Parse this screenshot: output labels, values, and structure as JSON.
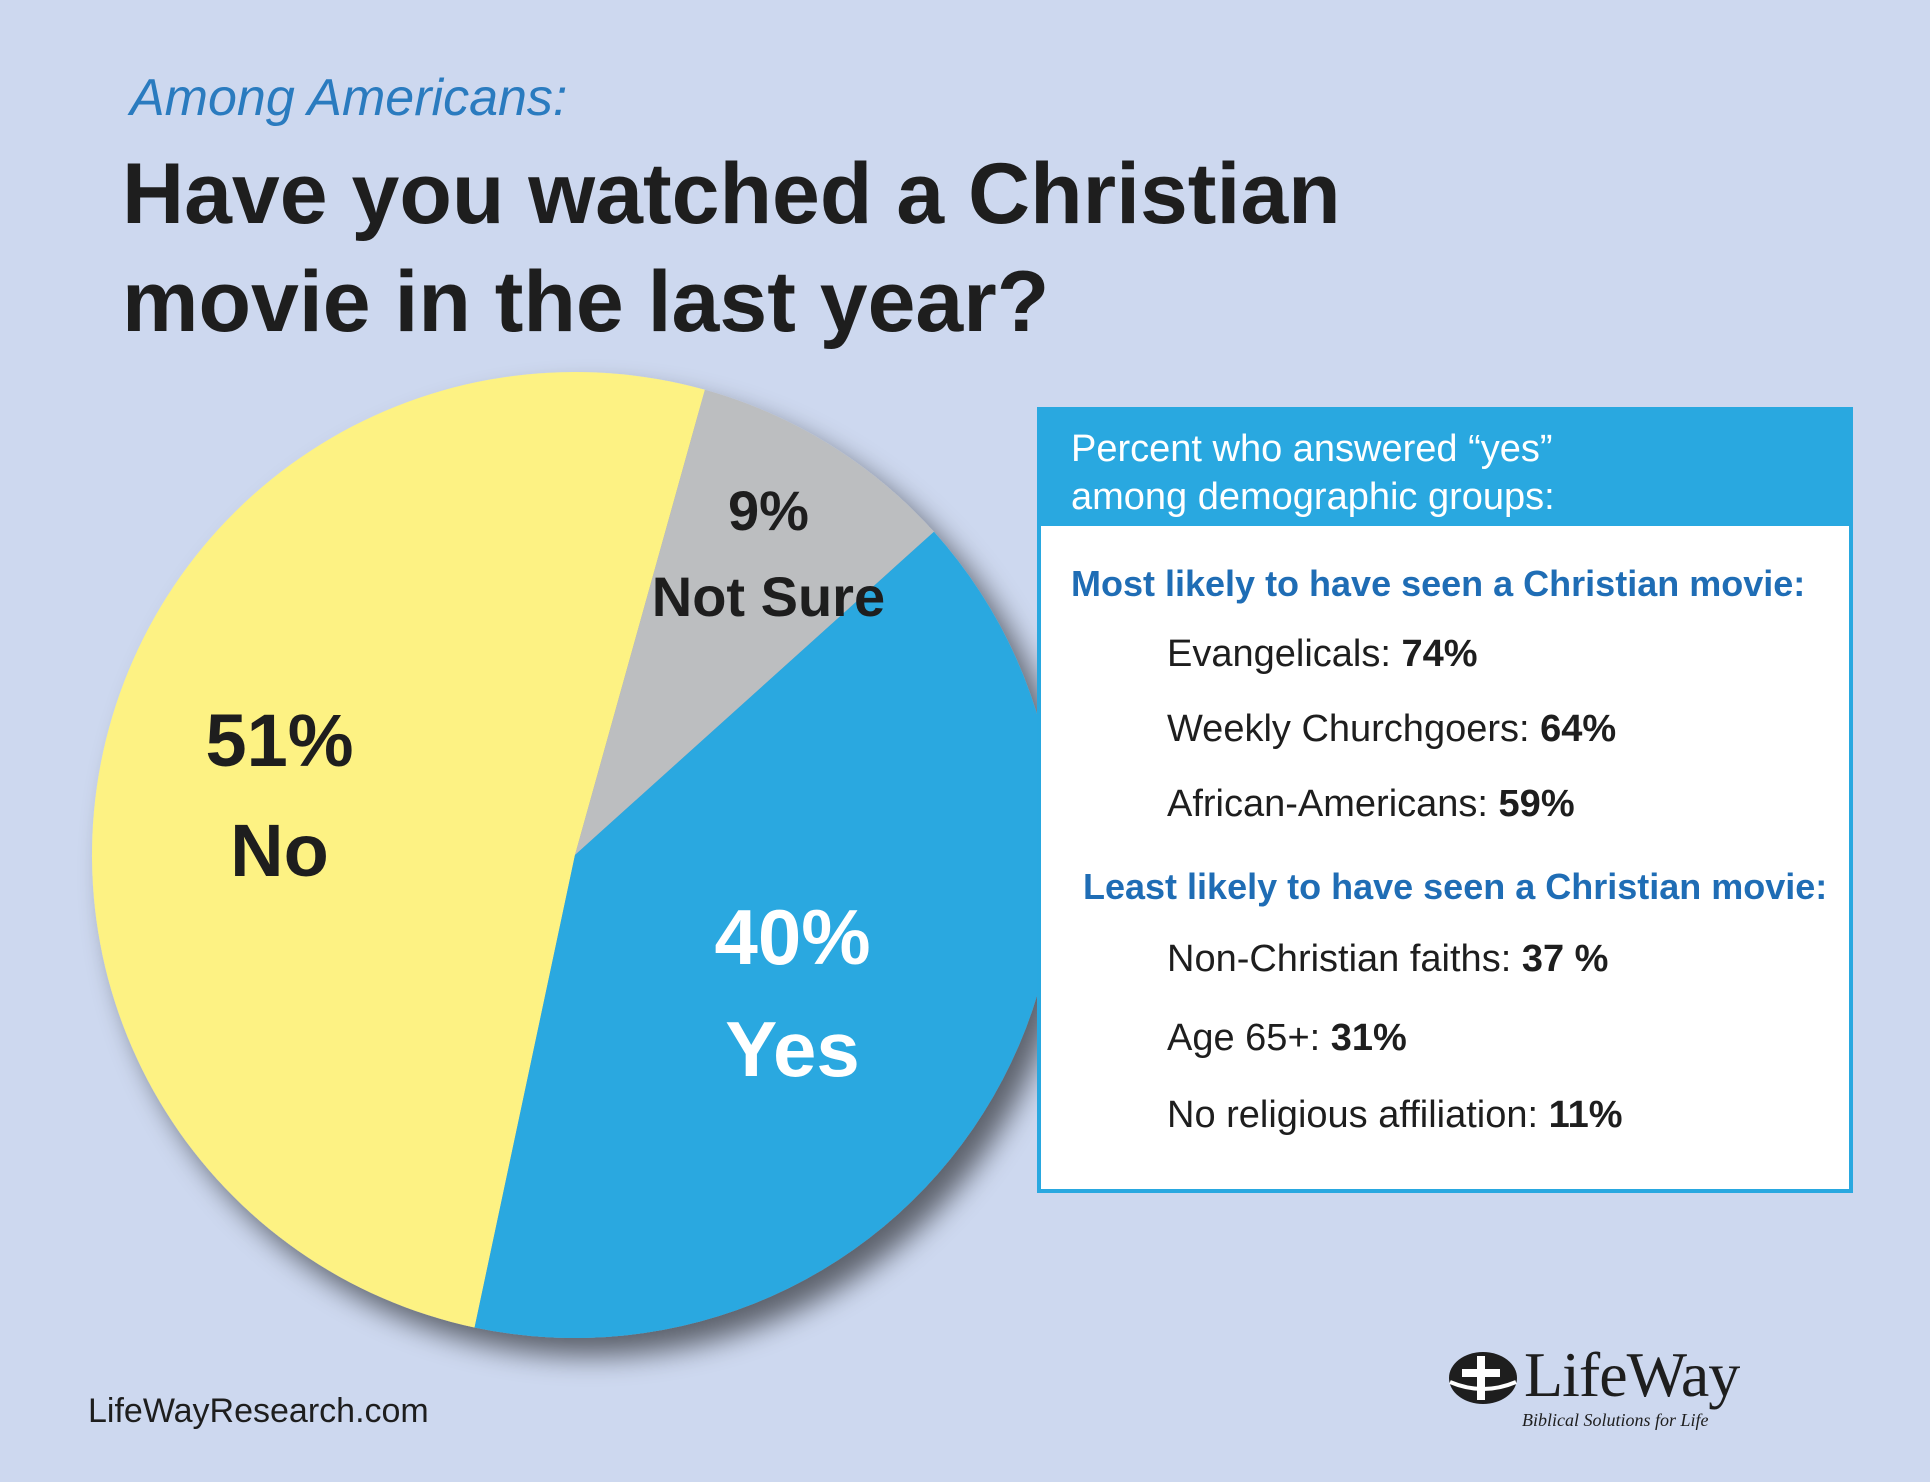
{
  "kicker": "Among Americans:",
  "title_line1": "Have you watched a Christian",
  "title_line2": "movie in the last year?",
  "chart_data": {
    "type": "pie",
    "title": "Have you watched a Christian movie in the last year?",
    "slices": [
      {
        "label": "No",
        "value": 51,
        "pct_text": "51%",
        "color": "#fdf283",
        "text_color": "#1e1e1e"
      },
      {
        "label": "Not Sure",
        "value": 9,
        "pct_text": "9%",
        "color": "#bcbec0",
        "text_color": "#1e1e1e"
      },
      {
        "label": "Yes",
        "value": 40,
        "pct_text": "40%",
        "color": "#29a8e0",
        "text_color": "#ffffff"
      }
    ]
  },
  "panel": {
    "header_line1": "Percent who answered “yes”",
    "header_line2": "among demographic groups:",
    "most_title": "Most likely to have seen a Christian movie:",
    "most": [
      {
        "label": "Evangelicals: ",
        "value": "74%"
      },
      {
        "label": "Weekly Churchgoers: ",
        "value": "64%"
      },
      {
        "label": "African-Americans: ",
        "value": "59%"
      }
    ],
    "least_title": "Least likely to have seen a Christian movie:",
    "least": [
      {
        "label": "Non-Christian faiths: ",
        "value": "37 %"
      },
      {
        "label": "Age 65+: ",
        "value": "31%"
      },
      {
        "label": "No religious affiliation: ",
        "value": "11%"
      }
    ]
  },
  "footer": {
    "site": "LifeWayResearch.com",
    "brand_name": "LifeWay",
    "brand_tagline": "Biblical Solutions for Life"
  },
  "colors": {
    "background": "#cdd8ef",
    "accent_blue": "#29a8e0",
    "heading_blue": "#1f6db5"
  }
}
